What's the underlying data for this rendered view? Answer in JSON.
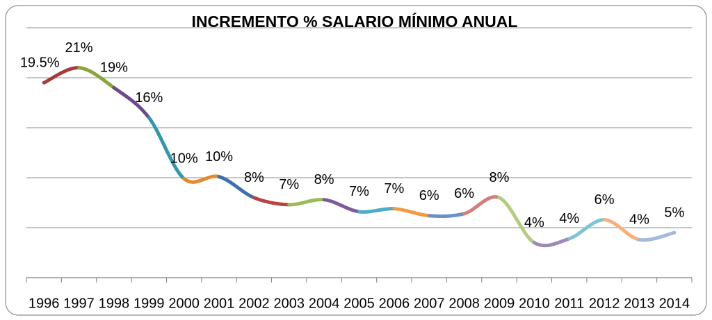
{
  "chart_data": {
    "type": "line",
    "title": "INCREMENTO % SALARIO MÍNIMO ANUAL",
    "categories": [
      "1996",
      "1997",
      "1998",
      "1999",
      "2000",
      "2001",
      "2002",
      "2003",
      "2004",
      "2005",
      "2006",
      "2007",
      "2008",
      "2009",
      "2010",
      "2011",
      "2012",
      "2013",
      "2014"
    ],
    "values": [
      19.5,
      21,
      19,
      16,
      9.9,
      10.1,
      8,
      7.3,
      7.8,
      6.6,
      6.9,
      6.2,
      6.4,
      8,
      3.5,
      3.9,
      5.8,
      3.8,
      4.5
    ],
    "value_labels": [
      "19.5%",
      "21%",
      "19%",
      "16%",
      "10%",
      "10%",
      "8%",
      "7%",
      "8%",
      "7%",
      "7%",
      "6%",
      "6%",
      "8%",
      "4%",
      "4%",
      "6%",
      "4%",
      "5%"
    ],
    "segment_colors": [
      "#a33c3a",
      "#8aa53a",
      "#6a4a8c",
      "#3496ab",
      "#e68a2e",
      "#3f6fb0",
      "#b84441",
      "#9bbb59",
      "#7e5a9c",
      "#4bacc6",
      "#f09a43",
      "#6d8fc9",
      "#d47d7b",
      "#b3cd80",
      "#9e89b8",
      "#7dc3d6",
      "#f7b07a",
      "#a4b9dc"
    ],
    "ylim": [
      0,
      25
    ],
    "yticks": [
      0,
      5,
      10,
      15,
      20,
      25
    ],
    "grid": true
  }
}
